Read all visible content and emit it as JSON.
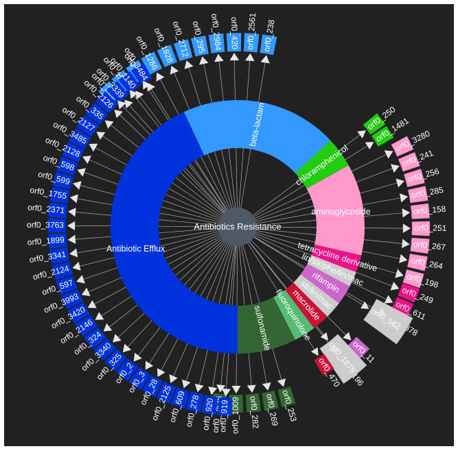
{
  "diagram": {
    "center_label": "Antibiotics Resistance",
    "categories": [
      {
        "id": "beta-lactam",
        "label": "beta-lactam",
        "color": "#3399ff",
        "orfs": [
          "orf0_238",
          "orf0_2561",
          "orf0_420",
          "orf0_2984",
          "orf0_295",
          "orf0_2712",
          "orf0_1828",
          "orf0_1286",
          "orf0_29",
          "orf0_1559",
          "orf0_203"
        ]
      },
      {
        "id": "chloramphenicol",
        "label": "chloramphenicol",
        "color": "#22cc11",
        "orfs": [
          "orf0_250",
          "orf0_1481"
        ]
      },
      {
        "id": "aminoglycoside",
        "label": "aminoglycoside",
        "color": "#ff99cc",
        "orfs": [
          "orf0_3280",
          "orf0_241",
          "orf0_256",
          "orf0_285",
          "orf0_158",
          "orf0_251",
          "orf0_267",
          "orf0_264",
          "orf0_198"
        ]
      },
      {
        "id": "tetracycline",
        "label": "tetracycline derivative",
        "color": "#ee1188",
        "orfs": [
          "orf0_249",
          "orf0_611",
          "orf0_878"
        ]
      },
      {
        "id": "lin-str",
        "label": "lin/str/phe/lin/mac",
        "color": "#cccccc",
        "orfs": [
          "orf0_562"
        ]
      },
      {
        "id": "rifampin",
        "label": "rifampin",
        "color": "#cc66cc",
        "orfs": [
          "orf0_11",
          "orf0_3196"
        ]
      },
      {
        "id": "str-lin",
        "label": "str/lin/mac",
        "color": "#cccccc",
        "orfs": [
          "orf0_1878"
        ]
      },
      {
        "id": "macrolide",
        "label": "macrolide",
        "color": "#cc1133",
        "orfs": [
          "orf0_470"
        ]
      },
      {
        "id": "fluoroquinolone",
        "label": "fluoroquinolone",
        "color": "#55bb77",
        "orfs": []
      },
      {
        "id": "sulfonamide",
        "label": "sulfonamide",
        "color": "#336633",
        "orfs": [
          "orf0_253",
          "orf0_269",
          "orf0_282",
          "orf0_1009",
          "orf0_2536"
        ]
      },
      {
        "id": "antibiotic-efflux",
        "label": "Antibiotic Efflux",
        "color": "#0033dd",
        "orfs": [
          "orf0_919",
          "orf0_920",
          "orf0_278",
          "orf0_609",
          "orf0_2125",
          "orf0_28",
          "orf0_3",
          "orf0_2",
          "orf0_325",
          "orf0_3340",
          "orf0_324",
          "orf0_2146",
          "orf0_3420",
          "orf0_3993",
          "orf0_597",
          "orf0_2124",
          "orf0_3341",
          "orf0_1899",
          "orf0_3763",
          "orf0_2371",
          "orf0_1755",
          "orf0_599",
          "orf0_598",
          "orf0_2128",
          "orf0_3485",
          "orf0_2127",
          "orf0_335",
          "orf0_2126",
          "orf0_3339",
          "orf0_1140",
          "orf0_3484"
        ]
      }
    ]
  }
}
